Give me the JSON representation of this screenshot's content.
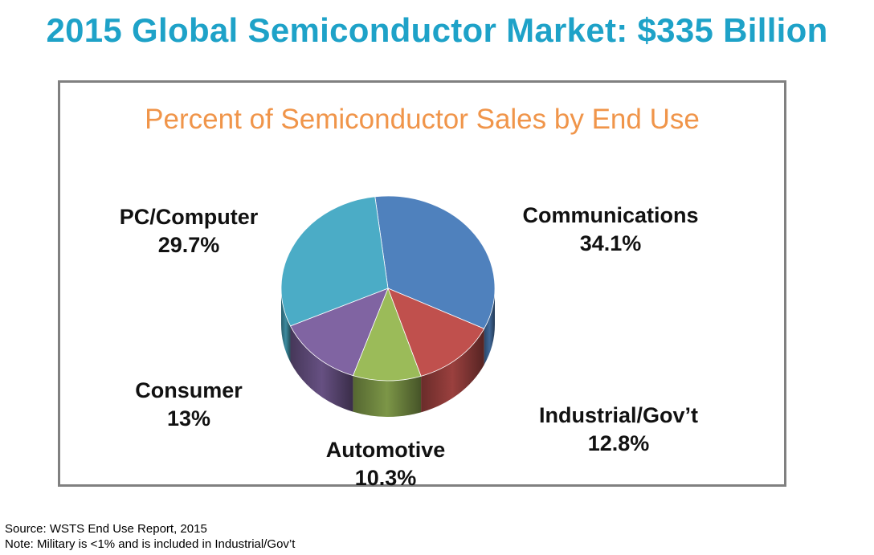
{
  "page": {
    "title": "2015 Global Semiconductor Market: $335 Billion",
    "source": "Source: WSTS End Use Report, 2015",
    "note": "Note: Military is <1% and is included in Industrial/Gov’t"
  },
  "chart_data": {
    "type": "pie",
    "title": "Percent of Semiconductor Sales by End Use",
    "style": "3d",
    "slices": [
      {
        "label": "Communications",
        "value": 34.1,
        "value_text": "34.1%",
        "color": "#4f81bd"
      },
      {
        "label": "Industrial/Gov’t",
        "value": 12.8,
        "value_text": "12.8%",
        "color": "#c0504d"
      },
      {
        "label": "Automotive",
        "value": 10.3,
        "value_text": "10.3%",
        "color": "#9bbb59"
      },
      {
        "label": "Consumer",
        "value": 13,
        "value_text": "13%",
        "color": "#8064a2"
      },
      {
        "label": "PC/Computer",
        "value": 29.7,
        "value_text": "29.7%",
        "color": "#4bacc6"
      }
    ]
  },
  "colors": {
    "title": "#1ea2c8",
    "chart_title": "#f0954a",
    "frame_border": "#808080"
  }
}
